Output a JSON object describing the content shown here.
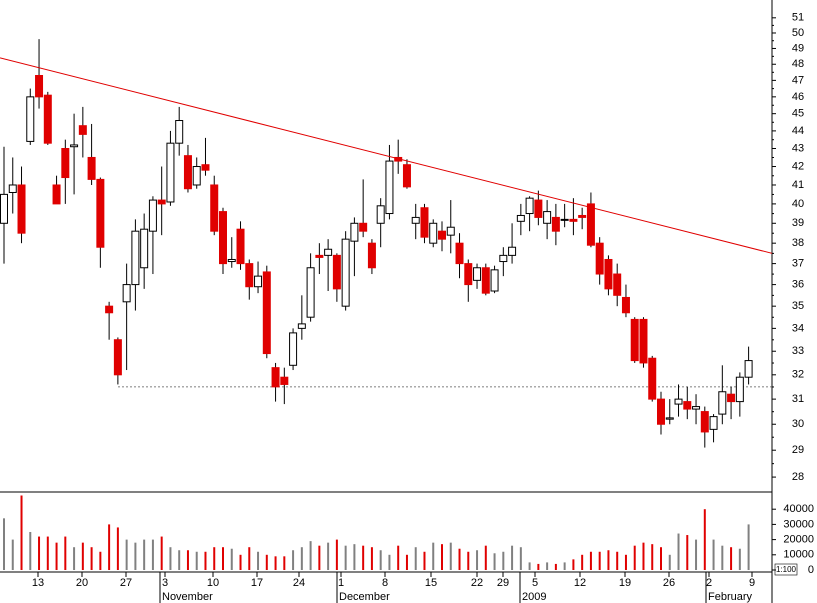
{
  "chart_data": {
    "type": "candlestick",
    "yscale": "log",
    "ylim": [
      27.46,
      52.2
    ],
    "yticks": [
      28,
      29,
      30,
      31,
      32,
      33,
      34,
      35,
      36,
      37,
      38,
      39,
      40,
      41,
      42,
      43,
      44,
      45,
      46,
      47,
      48,
      49,
      50,
      51
    ],
    "up_color": "#ffffff",
    "down_color": "#e00000",
    "series": [
      {
        "open": [
          39.0,
          40.6,
          41.0,
          43.4,
          47.3,
          46.1,
          41.0,
          43.0,
          43.1,
          44.3,
          42.5,
          41.3,
          35.0,
          33.5,
          35.2,
          36.0,
          36.8,
          38.6,
          40.2,
          40.1,
          43.3,
          42.6,
          41.0,
          42.1,
          41.0,
          39.6,
          37.1,
          38.7,
          37.0,
          35.9,
          36.6,
          32.3,
          31.9,
          32.4,
          34.0,
          34.5,
          37.4,
          37.4,
          37.4,
          35.0,
          38.1,
          39.0,
          38.0,
          39.0,
          39.5,
          42.5,
          42.1,
          39.0,
          39.8,
          38.0,
          38.6,
          38.4,
          38.0,
          37.0,
          36.2,
          36.8,
          35.7,
          37.1,
          37.4,
          39.1,
          39.5,
          40.2,
          39.0,
          39.3,
          39.15,
          39.2,
          39.4,
          40.0,
          38.0,
          37.2,
          36.5,
          35.4,
          34.4,
          34.4,
          32.7,
          31.0,
          30.2,
          30.8,
          30.9,
          30.6,
          30.5,
          29.8,
          30.4,
          31.2,
          30.9,
          31.9
        ],
        "high": [
          43.1,
          42.5,
          42.0,
          46.5,
          49.6,
          46.3,
          41.5,
          43.5,
          45.0,
          45.4,
          44.4,
          41.4,
          35.2,
          33.6,
          37.0,
          39.2,
          39.5,
          40.4,
          42.0,
          44.0,
          45.4,
          43.2,
          42.5,
          43.6,
          41.5,
          39.8,
          38.3,
          39.1,
          37.2,
          37.1,
          36.9,
          32.5,
          32.3,
          34.0,
          35.5,
          37.5,
          38.0,
          38.2,
          37.5,
          38.6,
          39.3,
          41.3,
          38.2,
          40.3,
          43.2,
          43.5,
          42.4,
          40.0,
          40.0,
          39.2,
          39.1,
          40.2,
          38.5,
          37.2,
          37.0,
          37.0,
          36.9,
          37.8,
          39.0,
          40.0,
          40.4,
          40.7,
          40.2,
          40.0,
          40.0,
          40.3,
          39.8,
          40.6,
          38.3,
          37.4,
          37.0,
          36.0,
          34.5,
          34.5,
          32.8,
          31.3,
          31.0,
          31.6,
          31.5,
          31.2,
          30.7,
          30.4,
          32.4,
          31.5,
          32.1,
          33.2
        ],
        "low": [
          37.0,
          39.5,
          38.0,
          43.2,
          45.3,
          43.2,
          40.0,
          40.0,
          40.5,
          42.5,
          41.0,
          36.8,
          33.5,
          31.6,
          32.2,
          34.8,
          35.8,
          36.5,
          38.4,
          39.9,
          42.6,
          40.6,
          40.8,
          41.5,
          38.4,
          36.5,
          36.8,
          36.7,
          35.3,
          35.6,
          32.7,
          30.9,
          30.8,
          32.2,
          33.5,
          34.3,
          36.5,
          35.7,
          35.2,
          34.8,
          36.4,
          38.3,
          36.5,
          37.8,
          39.2,
          41.6,
          40.8,
          38.2,
          38.0,
          37.8,
          37.6,
          37.5,
          36.3,
          35.2,
          35.8,
          35.5,
          35.6,
          36.4,
          37.0,
          38.4,
          38.6,
          38.9,
          38.2,
          37.9,
          38.8,
          38.4,
          38.7,
          37.8,
          36.0,
          35.5,
          35.0,
          34.5,
          32.5,
          32.3,
          30.9,
          29.6,
          30.0,
          30.3,
          30.2,
          30.0,
          29.1,
          29.3,
          30.0,
          30.2,
          30.3,
          31.6
        ],
        "close": [
          40.5,
          41.0,
          38.5,
          46.0,
          46.0,
          43.3,
          40.0,
          41.4,
          43.2,
          43.8,
          41.3,
          37.8,
          34.7,
          32.0,
          36.0,
          38.6,
          38.7,
          40.2,
          40.0,
          43.3,
          44.6,
          40.8,
          42.0,
          41.8,
          38.6,
          37.0,
          37.2,
          37.0,
          35.9,
          36.4,
          32.9,
          31.5,
          31.6,
          33.8,
          34.2,
          36.8,
          37.3,
          37.7,
          35.8,
          38.2,
          39.0,
          38.6,
          36.8,
          39.9,
          42.3,
          42.3,
          40.9,
          39.3,
          38.3,
          39.0,
          38.2,
          38.8,
          37.0,
          36.0,
          36.8,
          35.6,
          36.7,
          37.4,
          37.8,
          39.4,
          40.3,
          39.3,
          39.6,
          38.6,
          39.2,
          39.1,
          39.3,
          37.9,
          36.5,
          35.8,
          35.5,
          34.7,
          32.6,
          32.5,
          31.0,
          30.0,
          30.25,
          31.0,
          30.6,
          30.7,
          29.7,
          30.3,
          31.3,
          30.9,
          31.9,
          32.6
        ]
      }
    ],
    "trendline": {
      "color": "#e00000",
      "start": 48.4,
      "end": 37.5
    },
    "support_line": 31.5,
    "volume": {
      "ylim": [
        0,
        50000
      ],
      "yticks": [
        0,
        10000,
        20000,
        30000,
        40000
      ],
      "scale_label": "1:100",
      "up_color": "#808080",
      "values": [
        34000,
        20000,
        49000,
        25000,
        22000,
        22000,
        18000,
        22000,
        15000,
        18000,
        15000,
        12000,
        30000,
        28000,
        20000,
        18000,
        20000,
        20000,
        22000,
        15000,
        13000,
        13000,
        12000,
        12000,
        15000,
        15000,
        14000,
        10000,
        15000,
        12000,
        10000,
        9000,
        9000,
        13000,
        15000,
        19000,
        16000,
        18000,
        20000,
        16000,
        17000,
        16000,
        15000,
        13000,
        10000,
        16000,
        10000,
        15000,
        12000,
        18000,
        17000,
        18000,
        14000,
        12000,
        13000,
        16000,
        11000,
        12000,
        16000,
        15000,
        5000,
        4000,
        5000,
        4000,
        5000,
        7000,
        10000,
        12000,
        12000,
        13000,
        12000,
        10000,
        16000,
        18000,
        17000,
        15000,
        10000,
        24000,
        23000,
        20000,
        40000,
        20000,
        16000,
        15000,
        14000,
        30000
      ]
    },
    "x_labels": [
      "13",
      "20",
      "27",
      "3",
      "10",
      "17",
      "24",
      "1",
      "8",
      "15",
      "22",
      "29",
      "5",
      "12",
      "19",
      "26",
      "2",
      "9"
    ],
    "month_labels": [
      "November",
      "December",
      "2009",
      "February"
    ]
  }
}
